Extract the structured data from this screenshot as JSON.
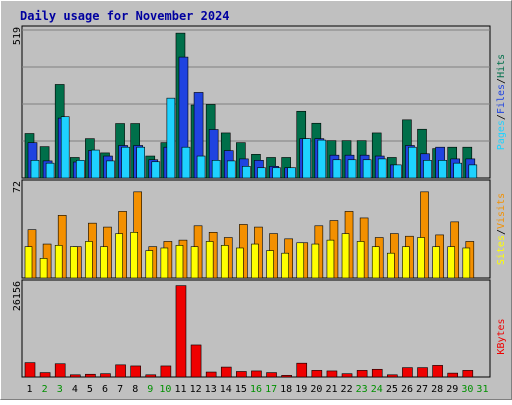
{
  "chart_data": {
    "type": "bar",
    "title": "Daily usage for November 2024",
    "categories": [
      "1",
      "2",
      "3",
      "4",
      "5",
      "6",
      "7",
      "8",
      "9",
      "10",
      "11",
      "12",
      "13",
      "14",
      "15",
      "16",
      "17",
      "18",
      "19",
      "20",
      "21",
      "22",
      "23",
      "24",
      "25",
      "26",
      "27",
      "28",
      "29",
      "30",
      "31"
    ],
    "weekend_days": [
      "2",
      "3",
      "9",
      "10",
      "16",
      "17",
      "23",
      "24",
      "30",
      "31"
    ],
    "panels": [
      {
        "id": "traffic",
        "max_label": "519",
        "ymax": 519,
        "legend": [
          "Pages",
          "Files",
          "Hits"
        ],
        "series": [
          {
            "name": "Hits",
            "color": "#006f4a",
            "values": [
              156,
              110,
              328,
              72,
              138,
              88,
              191,
              191,
              77,
              124,
              508,
              256,
              258,
              158,
              124,
              83,
              72,
              72,
              234,
              192,
              131,
              131,
              131,
              158,
              72,
              204,
              171,
              103,
              108,
              108,
              0
            ]
          },
          {
            "name": "Files",
            "color": "#1f43e0",
            "values": [
              124,
              60,
              210,
              56,
              96,
              77,
              114,
              114,
              64,
              108,
              424,
              300,
              170,
              96,
              67,
              62,
              41,
              36,
              138,
              138,
              80,
              80,
              80,
              77,
              46,
              114,
              85,
              108,
              67,
              67,
              0
            ]
          },
          {
            "name": "Pages",
            "color": "#1ed2ff",
            "values": [
              62,
              52,
              215,
              62,
              98,
              60,
              108,
              108,
              57,
              280,
              108,
              77,
              62,
              60,
              41,
              36,
              36,
              36,
              138,
              133,
              64,
              64,
              64,
              67,
              46,
              108,
              62,
              62,
              52,
              46,
              0
            ]
          }
        ]
      },
      {
        "id": "visits",
        "max_label": "72",
        "ymax": 72,
        "legend": [
          "Sites",
          "Visits"
        ],
        "series": [
          {
            "name": "Visits",
            "color": "#f39000",
            "values": [
              37,
              26,
              48,
              24,
              42,
              39,
              51,
              66,
              24,
              28,
              29,
              40,
              35,
              31,
              41,
              39,
              34,
              30,
              27,
              40,
              44,
              51,
              46,
              31,
              34,
              32,
              66,
              33,
              43,
              28,
              0
            ]
          },
          {
            "name": "Sites",
            "color": "#ffff00",
            "values": [
              24,
              15,
              25,
              24,
              28,
              24,
              34,
              35,
              21,
              23,
              25,
              24,
              28,
              25,
              23,
              26,
              21,
              19,
              27,
              26,
              29,
              34,
              28,
              24,
              19,
              24,
              31,
              24,
              24,
              23,
              0
            ]
          }
        ]
      },
      {
        "id": "kbytes",
        "max_label": "26156",
        "ymax": 26156,
        "legend": [
          "KBytes"
        ],
        "series": [
          {
            "name": "KBytes",
            "color": "#ef0000",
            "values": [
              4040,
              1240,
              3730,
              620,
              775,
              930,
              3420,
              3108,
              620,
              3108,
              25700,
              9010,
              1395,
              2790,
              1550,
              1705,
              1240,
              465,
              3885,
              1860,
              1705,
              930,
              1860,
              2170,
              620,
              2635,
              2635,
              3265,
              1090,
              1860,
              0
            ]
          }
        ]
      }
    ],
    "colors": {
      "Hits": "#006f4a",
      "Files": "#1f43e0",
      "Pages": "#1ed2ff",
      "Visits": "#f39000",
      "Sites": "#ffff00",
      "KBytes": "#ef0000",
      "title": "#0000a0",
      "weekend_label": "#009000",
      "separator": "#000000"
    },
    "grid": true
  }
}
